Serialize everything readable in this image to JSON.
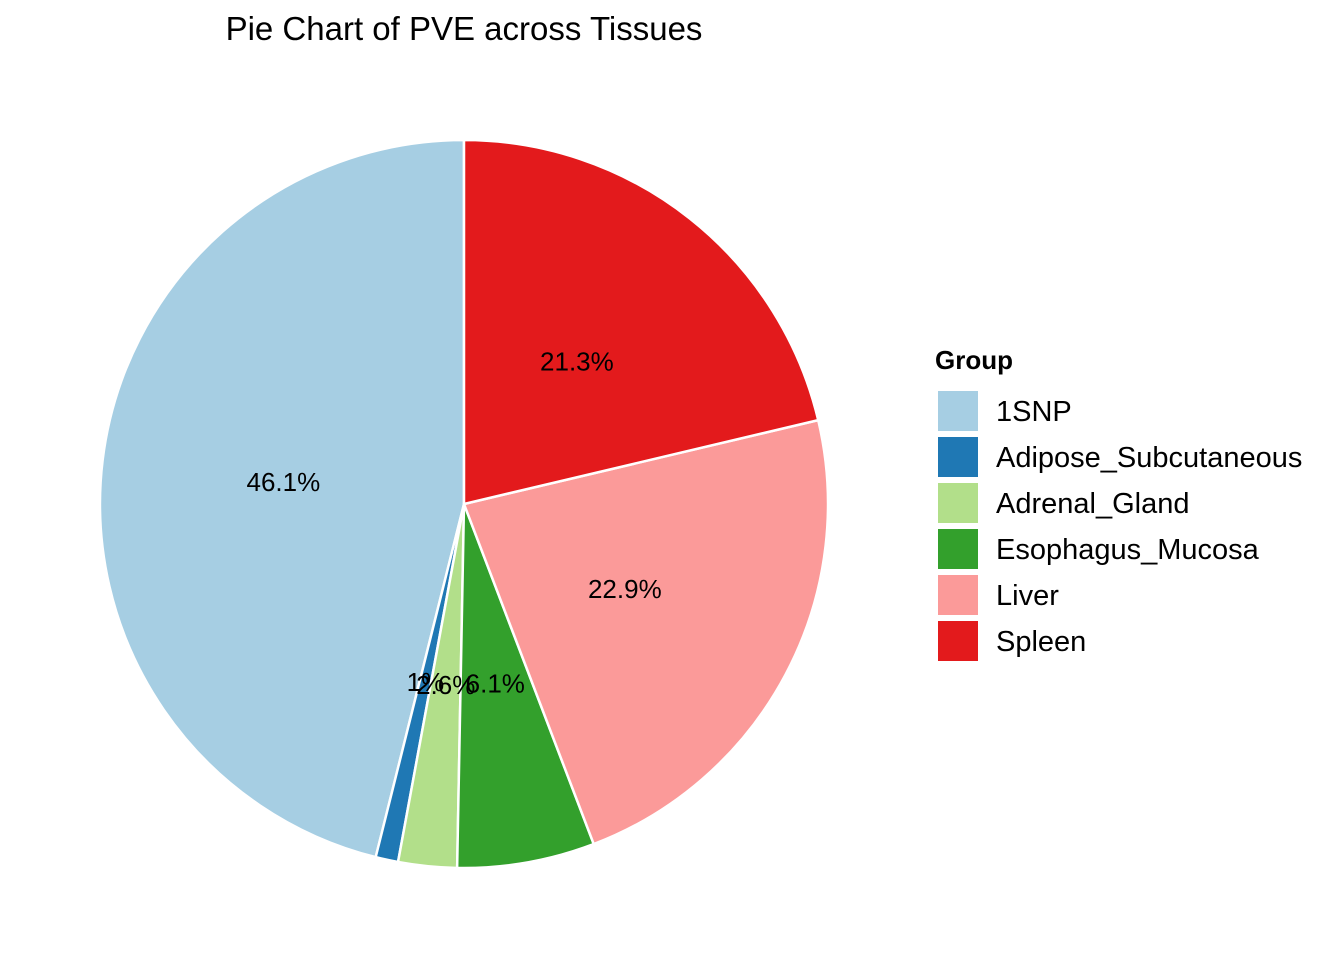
{
  "chart_data": {
    "type": "pie",
    "title": "Pie Chart of PVE across Tissues",
    "legend": {
      "title": "Group",
      "position": "right"
    },
    "categories": [
      "1SNP",
      "Adipose_Subcutaneous",
      "Adrenal_Gland",
      "Esophagus_Mucosa",
      "Liver",
      "Spleen"
    ],
    "values": [
      46.1,
      1.0,
      2.6,
      6.1,
      22.9,
      21.3
    ],
    "labels": [
      "46.1%",
      "1%",
      "2.6%",
      "6.1%",
      "22.9%",
      "21.3%"
    ],
    "colors": [
      "#A6CEE3",
      "#1F78B4",
      "#B2DF8A",
      "#33A02C",
      "#FB9A99",
      "#E31A1C"
    ],
    "direction": "counterclockwise",
    "start": "top"
  }
}
